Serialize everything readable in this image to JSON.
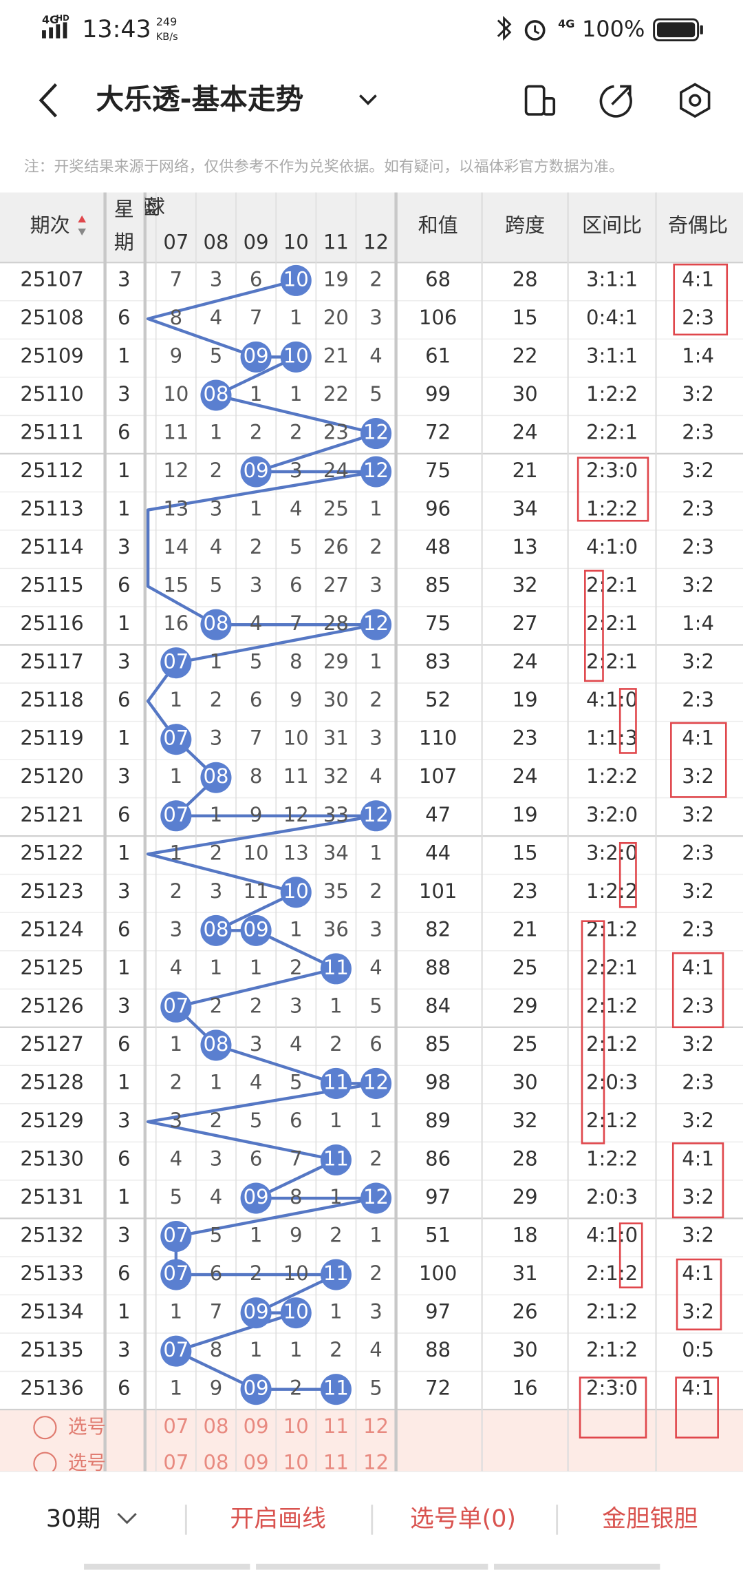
{
  "status_bar": {
    "network": "4G",
    "network_sup": "HD",
    "time": "13:43",
    "speed": "249",
    "speed_unit": "KB/s",
    "signal2": "4G",
    "battery": "100%"
  },
  "header": {
    "title": "大乐透-基本走势"
  },
  "note": "注：开奖结果来源于网络，仅供参考不作为兑奖依据。如有疑问，以福体彩官方数据为准。",
  "table": {
    "headers": {
      "period": "期次",
      "week": [
        "星",
        "期"
      ],
      "blue": "蓝球",
      "sum": "和值",
      "span": "跨度",
      "zone": "区间比",
      "odd_even": "奇偶比"
    },
    "ball_columns": [
      "07",
      "08",
      "09",
      "10",
      "11",
      "12"
    ],
    "rows": [
      [
        25107,
        3,
        [
          "7",
          "3",
          "6",
          "10",
          "19",
          "2"
        ],
        [
          3
        ],
        68,
        28,
        "3:1:1",
        "4:1"
      ],
      [
        25108,
        6,
        [
          "8",
          "4",
          "7",
          "1",
          "20",
          "3"
        ],
        [],
        106,
        15,
        "0:4:1",
        "2:3"
      ],
      [
        25109,
        1,
        [
          "9",
          "5",
          "09",
          "10",
          "21",
          "4"
        ],
        [
          2,
          3
        ],
        61,
        22,
        "3:1:1",
        "1:4"
      ],
      [
        25110,
        3,
        [
          "10",
          "08",
          "1",
          "1",
          "22",
          "5"
        ],
        [
          1
        ],
        99,
        30,
        "1:2:2",
        "3:2"
      ],
      [
        25111,
        6,
        [
          "11",
          "1",
          "2",
          "2",
          "23",
          "12"
        ],
        [
          5
        ],
        72,
        24,
        "2:2:1",
        "2:3"
      ],
      [
        25112,
        1,
        [
          "12",
          "2",
          "09",
          "3",
          "24",
          "12"
        ],
        [
          2,
          5
        ],
        75,
        21,
        "2:3:0",
        "3:2"
      ],
      [
        25113,
        1,
        [
          "13",
          "3",
          "1",
          "4",
          "25",
          "1"
        ],
        [],
        96,
        34,
        "1:2:2",
        "2:3"
      ],
      [
        25114,
        3,
        [
          "14",
          "4",
          "2",
          "5",
          "26",
          "2"
        ],
        [],
        48,
        13,
        "4:1:0",
        "2:3"
      ],
      [
        25115,
        6,
        [
          "15",
          "5",
          "3",
          "6",
          "27",
          "3"
        ],
        [],
        85,
        32,
        "2:2:1",
        "3:2"
      ],
      [
        25116,
        1,
        [
          "16",
          "08",
          "4",
          "7",
          "28",
          "12"
        ],
        [
          1,
          5
        ],
        75,
        27,
        "2:2:1",
        "1:4"
      ],
      [
        25117,
        3,
        [
          "07",
          "1",
          "5",
          "8",
          "29",
          "1"
        ],
        [
          0
        ],
        83,
        24,
        "2:2:1",
        "3:2"
      ],
      [
        25118,
        6,
        [
          "1",
          "2",
          "6",
          "9",
          "30",
          "2"
        ],
        [],
        52,
        19,
        "4:1:0",
        "2:3"
      ],
      [
        25119,
        1,
        [
          "07",
          "3",
          "7",
          "10",
          "31",
          "3"
        ],
        [
          0
        ],
        110,
        23,
        "1:1:3",
        "4:1"
      ],
      [
        25120,
        3,
        [
          "1",
          "08",
          "8",
          "11",
          "32",
          "4"
        ],
        [
          1
        ],
        107,
        24,
        "1:2:2",
        "3:2"
      ],
      [
        25121,
        6,
        [
          "07",
          "1",
          "9",
          "12",
          "33",
          "12"
        ],
        [
          0,
          5
        ],
        47,
        19,
        "3:2:0",
        "3:2"
      ],
      [
        25122,
        1,
        [
          "1",
          "2",
          "10",
          "13",
          "34",
          "1"
        ],
        [],
        44,
        15,
        "3:2:0",
        "2:3"
      ],
      [
        25123,
        3,
        [
          "2",
          "3",
          "11",
          "10",
          "35",
          "2"
        ],
        [
          3
        ],
        101,
        23,
        "1:2:2",
        "3:2"
      ],
      [
        25124,
        6,
        [
          "3",
          "08",
          "09",
          "1",
          "36",
          "3"
        ],
        [
          1,
          2
        ],
        82,
        21,
        "2:1:2",
        "2:3"
      ],
      [
        25125,
        1,
        [
          "4",
          "1",
          "1",
          "2",
          "11",
          "4"
        ],
        [
          4
        ],
        88,
        25,
        "2:2:1",
        "4:1"
      ],
      [
        25126,
        3,
        [
          "07",
          "2",
          "2",
          "3",
          "1",
          "5"
        ],
        [
          0
        ],
        84,
        29,
        "2:1:2",
        "2:3"
      ],
      [
        25127,
        6,
        [
          "1",
          "08",
          "3",
          "4",
          "2",
          "6"
        ],
        [
          1
        ],
        85,
        25,
        "2:1:2",
        "3:2"
      ],
      [
        25128,
        1,
        [
          "2",
          "1",
          "4",
          "5",
          "11",
          "12"
        ],
        [
          4,
          5
        ],
        98,
        30,
        "2:0:3",
        "2:3"
      ],
      [
        25129,
        3,
        [
          "3",
          "2",
          "5",
          "6",
          "1",
          "1"
        ],
        [],
        89,
        32,
        "2:1:2",
        "3:2"
      ],
      [
        25130,
        6,
        [
          "4",
          "3",
          "6",
          "7",
          "11",
          "2"
        ],
        [
          4
        ],
        86,
        28,
        "1:2:2",
        "4:1"
      ],
      [
        25131,
        1,
        [
          "5",
          "4",
          "09",
          "8",
          "1",
          "12"
        ],
        [
          2,
          5
        ],
        97,
        29,
        "2:0:3",
        "3:2"
      ],
      [
        25132,
        3,
        [
          "07",
          "5",
          "1",
          "9",
          "2",
          "1"
        ],
        [
          0
        ],
        51,
        18,
        "4:1:0",
        "3:2"
      ],
      [
        25133,
        6,
        [
          "07",
          "6",
          "2",
          "10",
          "11",
          "2"
        ],
        [
          0,
          4
        ],
        100,
        31,
        "2:1:2",
        "4:1"
      ],
      [
        25134,
        1,
        [
          "1",
          "7",
          "09",
          "10",
          "1",
          "3"
        ],
        [
          2,
          3
        ],
        97,
        26,
        "2:1:2",
        "3:2"
      ],
      [
        25135,
        3,
        [
          "07",
          "8",
          "1",
          "1",
          "2",
          "4"
        ],
        [
          0
        ],
        88,
        30,
        "2:1:2",
        "0:5"
      ],
      [
        25136,
        6,
        [
          "1",
          "9",
          "09",
          "2",
          "11",
          "5"
        ],
        [
          2,
          4
        ],
        72,
        16,
        "2:3:0",
        "4:1"
      ]
    ]
  },
  "selector": {
    "labels": [
      "选号",
      "选号"
    ]
  },
  "bottom_bar": {
    "periods": "30期",
    "draw": "开启画线",
    "list": "选号单(0)",
    "dan": "金胆银胆"
  }
}
